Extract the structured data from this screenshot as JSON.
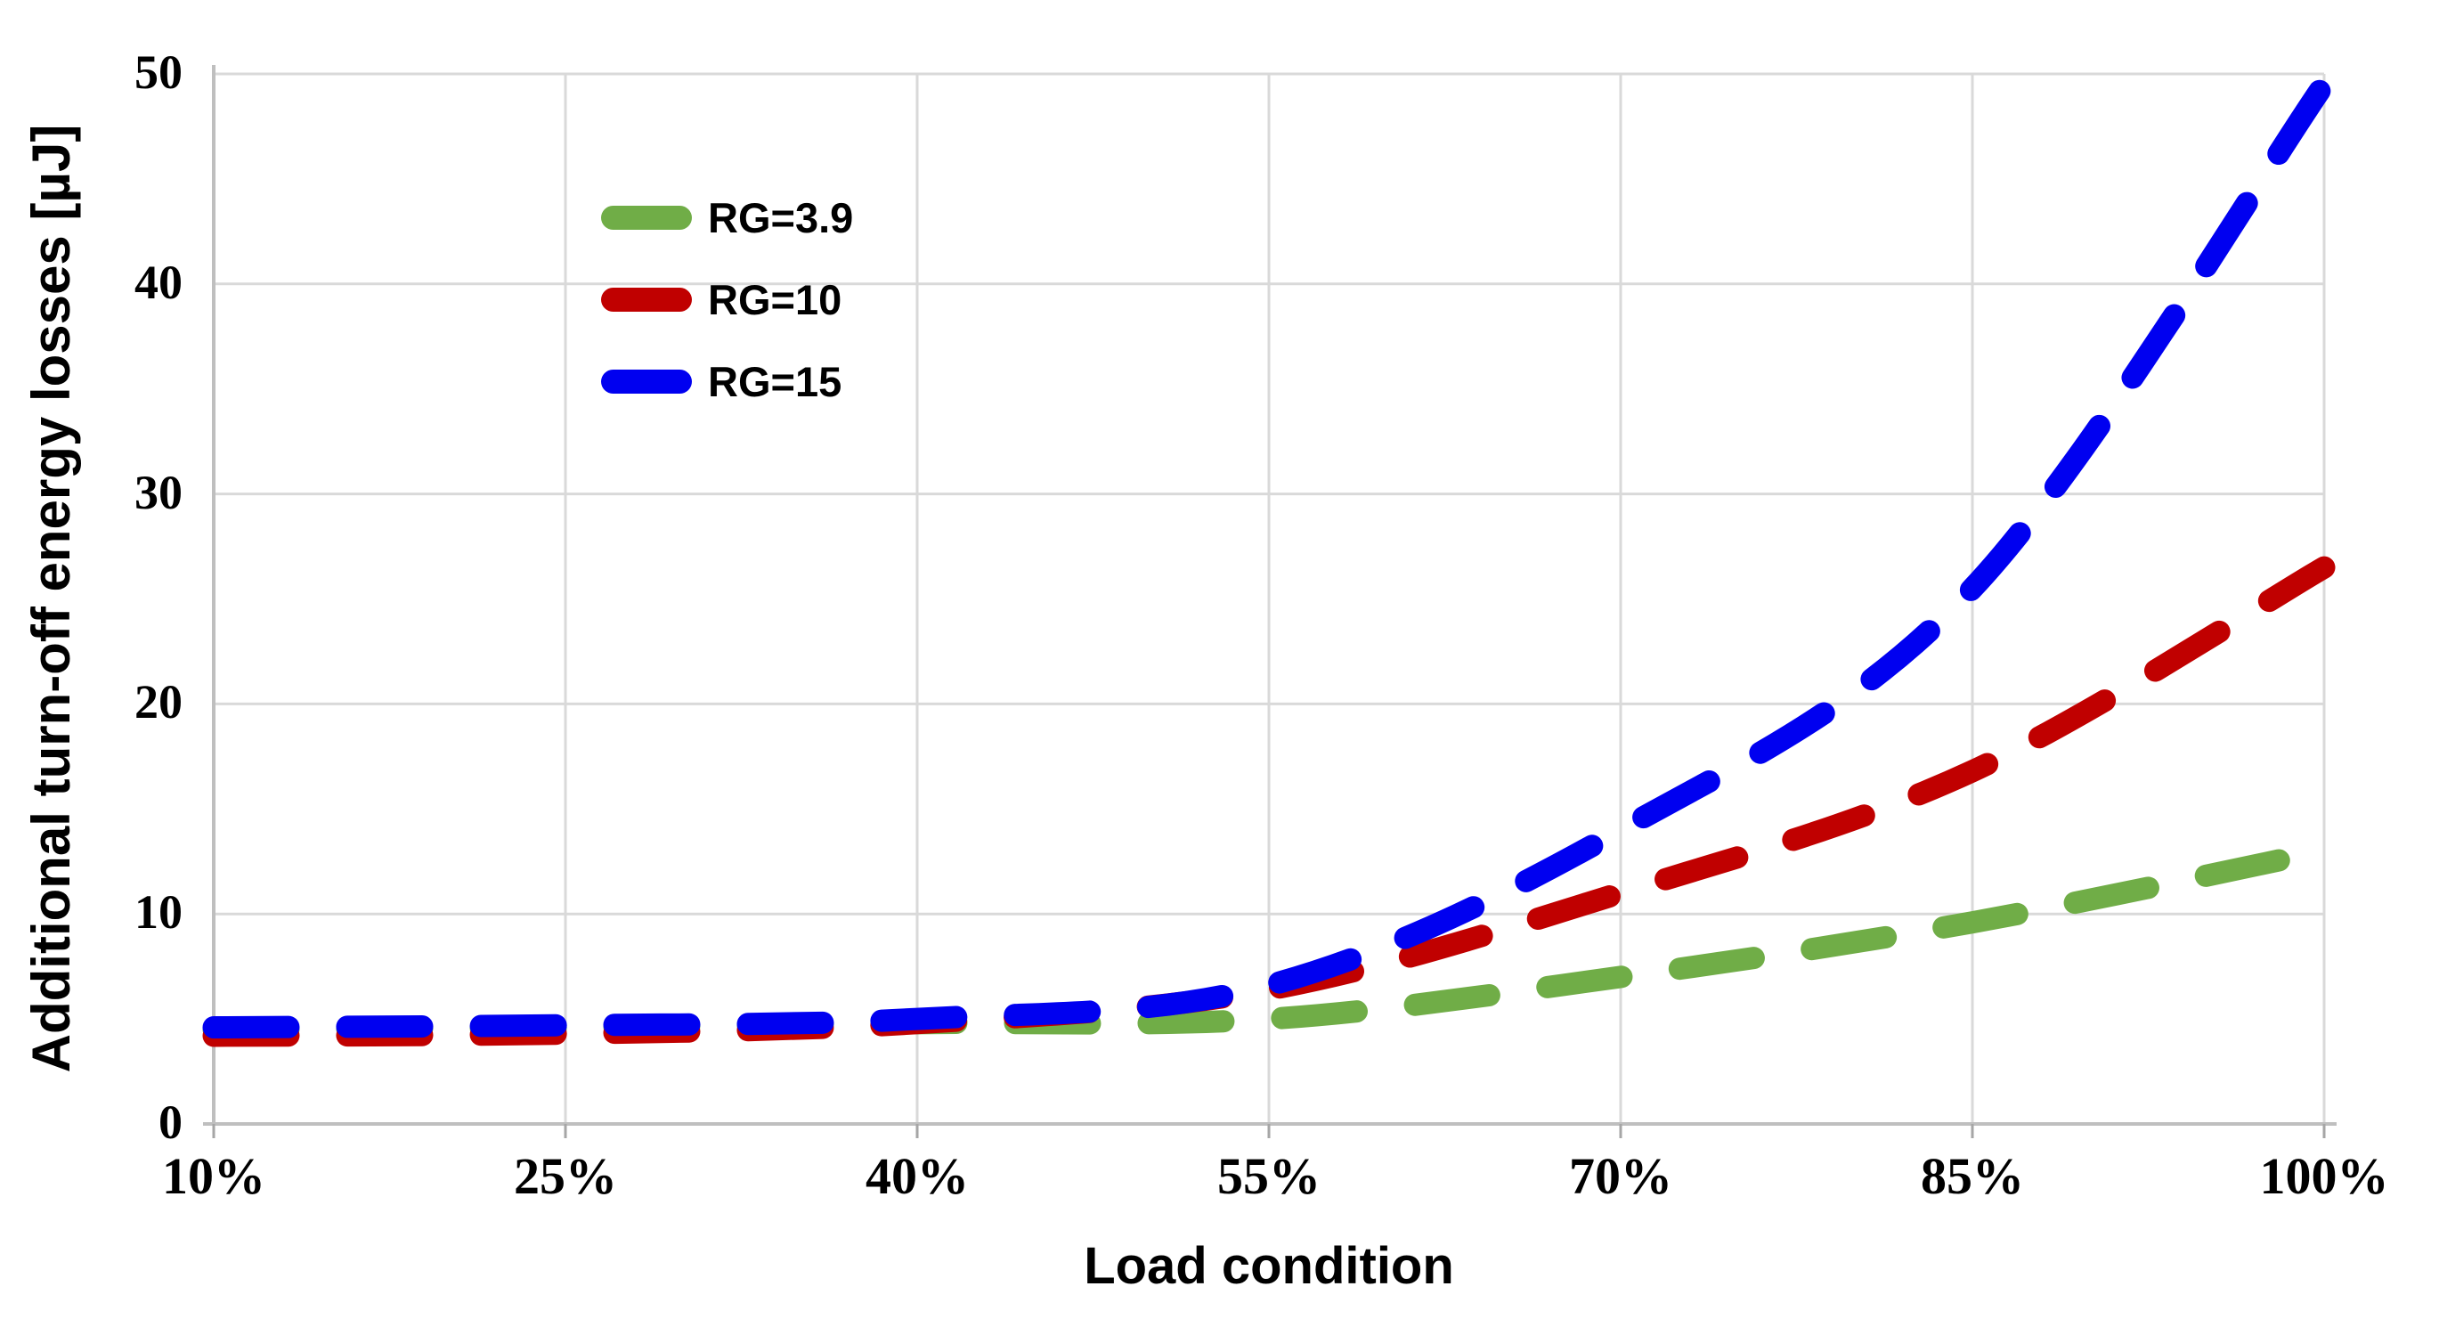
{
  "chart_data": {
    "type": "line",
    "line_style": "dashed",
    "xlabel": "Load condition",
    "ylabel": "Additional turn-off energy losses [µJ]",
    "categories": [
      "10%",
      "25%",
      "40%",
      "55%",
      "70%",
      "85%",
      "100%"
    ],
    "series": [
      {
        "name": "RG=3.9",
        "color": "#70AD47",
        "values": [
          4.5,
          4.6,
          4.8,
          5.0,
          7.0,
          9.6,
          13.0
        ]
      },
      {
        "name": "RG=10",
        "color": "#C00000",
        "values": [
          4.2,
          4.3,
          4.8,
          6.4,
          11.0,
          16.8,
          26.5
        ]
      },
      {
        "name": "RG=15",
        "color": "#0000F0",
        "values": [
          4.6,
          4.7,
          5.0,
          6.6,
          14.0,
          25.5,
          49.5
        ]
      }
    ],
    "ylim": [
      0,
      50
    ],
    "yticks": [
      0,
      10,
      20,
      30,
      40,
      50
    ],
    "grid": true,
    "legend_position": "upper-left-inside",
    "colors": {
      "gridline": "#D9D9D9",
      "axis_line": "#BFBFBF",
      "tick_mark": "#A6A6A6",
      "text": "#000000",
      "background": "#FFFFFF"
    }
  }
}
